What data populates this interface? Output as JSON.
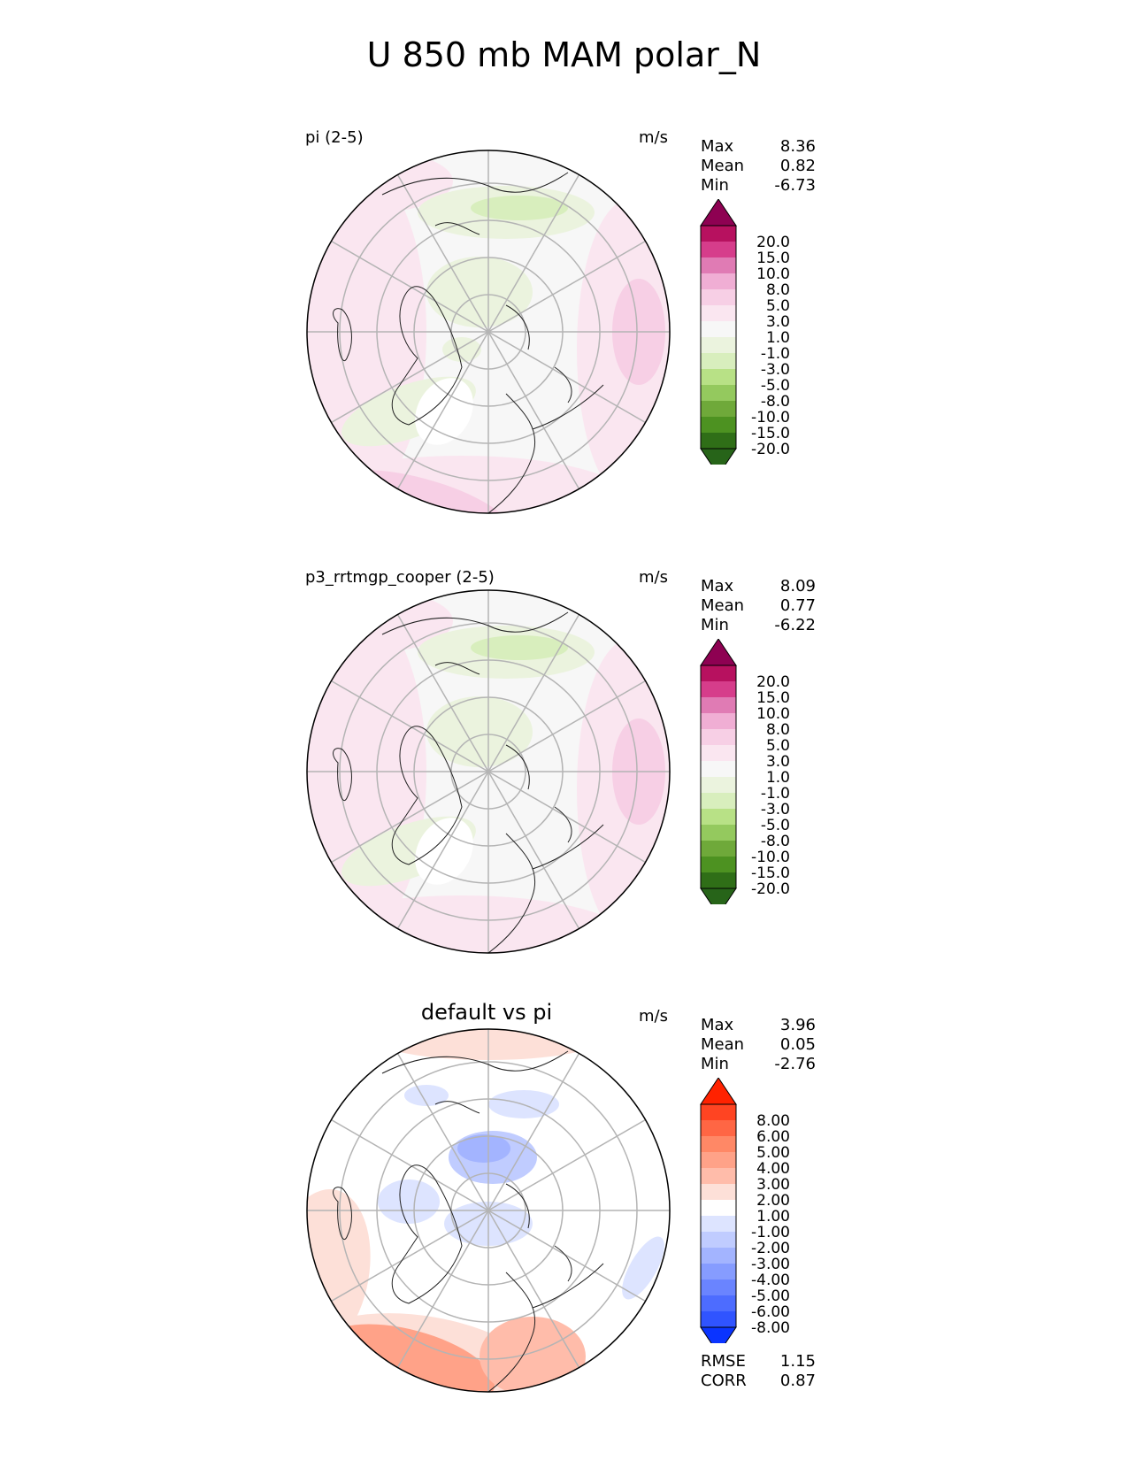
{
  "title": "U 850 mb MAM polar_N",
  "panels": [
    {
      "label": "pi (2-5)",
      "units": "m/s",
      "stats": [
        {
          "name": "Max",
          "value": "8.36"
        },
        {
          "name": "Mean",
          "value": "0.82"
        },
        {
          "name": "Min",
          "value": "-6.73"
        }
      ],
      "colorbar": {
        "levels": [
          "20.0",
          "15.0",
          "10.0",
          "8.0",
          "5.0",
          "3.0",
          "1.0",
          "-1.0",
          "-3.0",
          "-5.0",
          "-8.0",
          "-10.0",
          "-15.0",
          "-20.0"
        ],
        "colors": [
          "#8e0152",
          "#b7115f",
          "#d63d8b",
          "#e07bb4",
          "#f0aed4",
          "#f7cfe5",
          "#fae6f0",
          "#f7f7f7",
          "#ebf3de",
          "#d8eebd",
          "#b8e186",
          "#94c95e",
          "#6fa93a",
          "#4d9221",
          "#2f6e17",
          "#276419"
        ]
      },
      "map": {
        "palette": "PiYG",
        "pattern": "pi"
      }
    },
    {
      "label": "p3_rrtmgp_cooper (2-5)",
      "units": "m/s",
      "stats": [
        {
          "name": "Max",
          "value": "8.09"
        },
        {
          "name": "Mean",
          "value": "0.77"
        },
        {
          "name": "Min",
          "value": "-6.22"
        }
      ],
      "colorbar": {
        "levels": [
          "20.0",
          "15.0",
          "10.0",
          "8.0",
          "5.0",
          "3.0",
          "1.0",
          "-1.0",
          "-3.0",
          "-5.0",
          "-8.0",
          "-10.0",
          "-15.0",
          "-20.0"
        ],
        "colors": [
          "#8e0152",
          "#b7115f",
          "#d63d8b",
          "#e07bb4",
          "#f0aed4",
          "#f7cfe5",
          "#fae6f0",
          "#f7f7f7",
          "#ebf3de",
          "#d8eebd",
          "#b8e186",
          "#94c95e",
          "#6fa93a",
          "#4d9221",
          "#2f6e17",
          "#276419"
        ]
      },
      "map": {
        "palette": "PiYG",
        "pattern": "p3"
      }
    },
    {
      "label": "default vs pi",
      "units": "m/s",
      "stats": [
        {
          "name": "Max",
          "value": "3.96"
        },
        {
          "name": "Mean",
          "value": "0.05"
        },
        {
          "name": "Min",
          "value": "-2.76"
        }
      ],
      "colorbar": {
        "levels": [
          "8.00",
          "6.00",
          "5.00",
          "4.00",
          "3.00",
          "2.00",
          "1.00",
          "-1.00",
          "-2.00",
          "-3.00",
          "-4.00",
          "-5.00",
          "-6.00",
          "-8.00"
        ],
        "colors": [
          "#ff2200",
          "#ff4422",
          "#ff6644",
          "#ff8866",
          "#ffa288",
          "#ffbcaa",
          "#fde0d8",
          "#ffffff",
          "#dde4ff",
          "#c0ccff",
          "#a3b4ff",
          "#869cff",
          "#6a84ff",
          "#4d6cff",
          "#3054ff",
          "#0a34ff"
        ]
      },
      "map": {
        "palette": "diff",
        "pattern": "diff"
      },
      "extra_stats": [
        {
          "name": "RMSE",
          "value": "1.15"
        },
        {
          "name": "CORR",
          "value": "0.87"
        }
      ]
    }
  ],
  "chart_data": [
    {
      "type": "heatmap",
      "projection": "north polar stereographic",
      "title": "pi (2-5)",
      "units": "m/s",
      "summary": {
        "max": 8.36,
        "mean": 0.82,
        "min": -6.73
      },
      "contour_levels": [
        -20,
        -15,
        -10,
        -8,
        -5,
        -3,
        -1,
        1,
        3,
        5,
        8,
        10,
        15,
        20
      ]
    },
    {
      "type": "heatmap",
      "projection": "north polar stereographic",
      "title": "p3_rrtmgp_cooper (2-5)",
      "units": "m/s",
      "summary": {
        "max": 8.09,
        "mean": 0.77,
        "min": -6.22
      },
      "contour_levels": [
        -20,
        -15,
        -10,
        -8,
        -5,
        -3,
        -1,
        1,
        3,
        5,
        8,
        10,
        15,
        20
      ]
    },
    {
      "type": "heatmap",
      "projection": "north polar stereographic",
      "title": "default vs pi",
      "units": "m/s",
      "summary": {
        "max": 3.96,
        "mean": 0.05,
        "min": -2.76,
        "rmse": 1.15,
        "corr": 0.87
      },
      "contour_levels": [
        -8,
        -6,
        -5,
        -4,
        -3,
        -2,
        -1,
        1,
        2,
        3,
        4,
        5,
        6,
        8
      ]
    }
  ]
}
